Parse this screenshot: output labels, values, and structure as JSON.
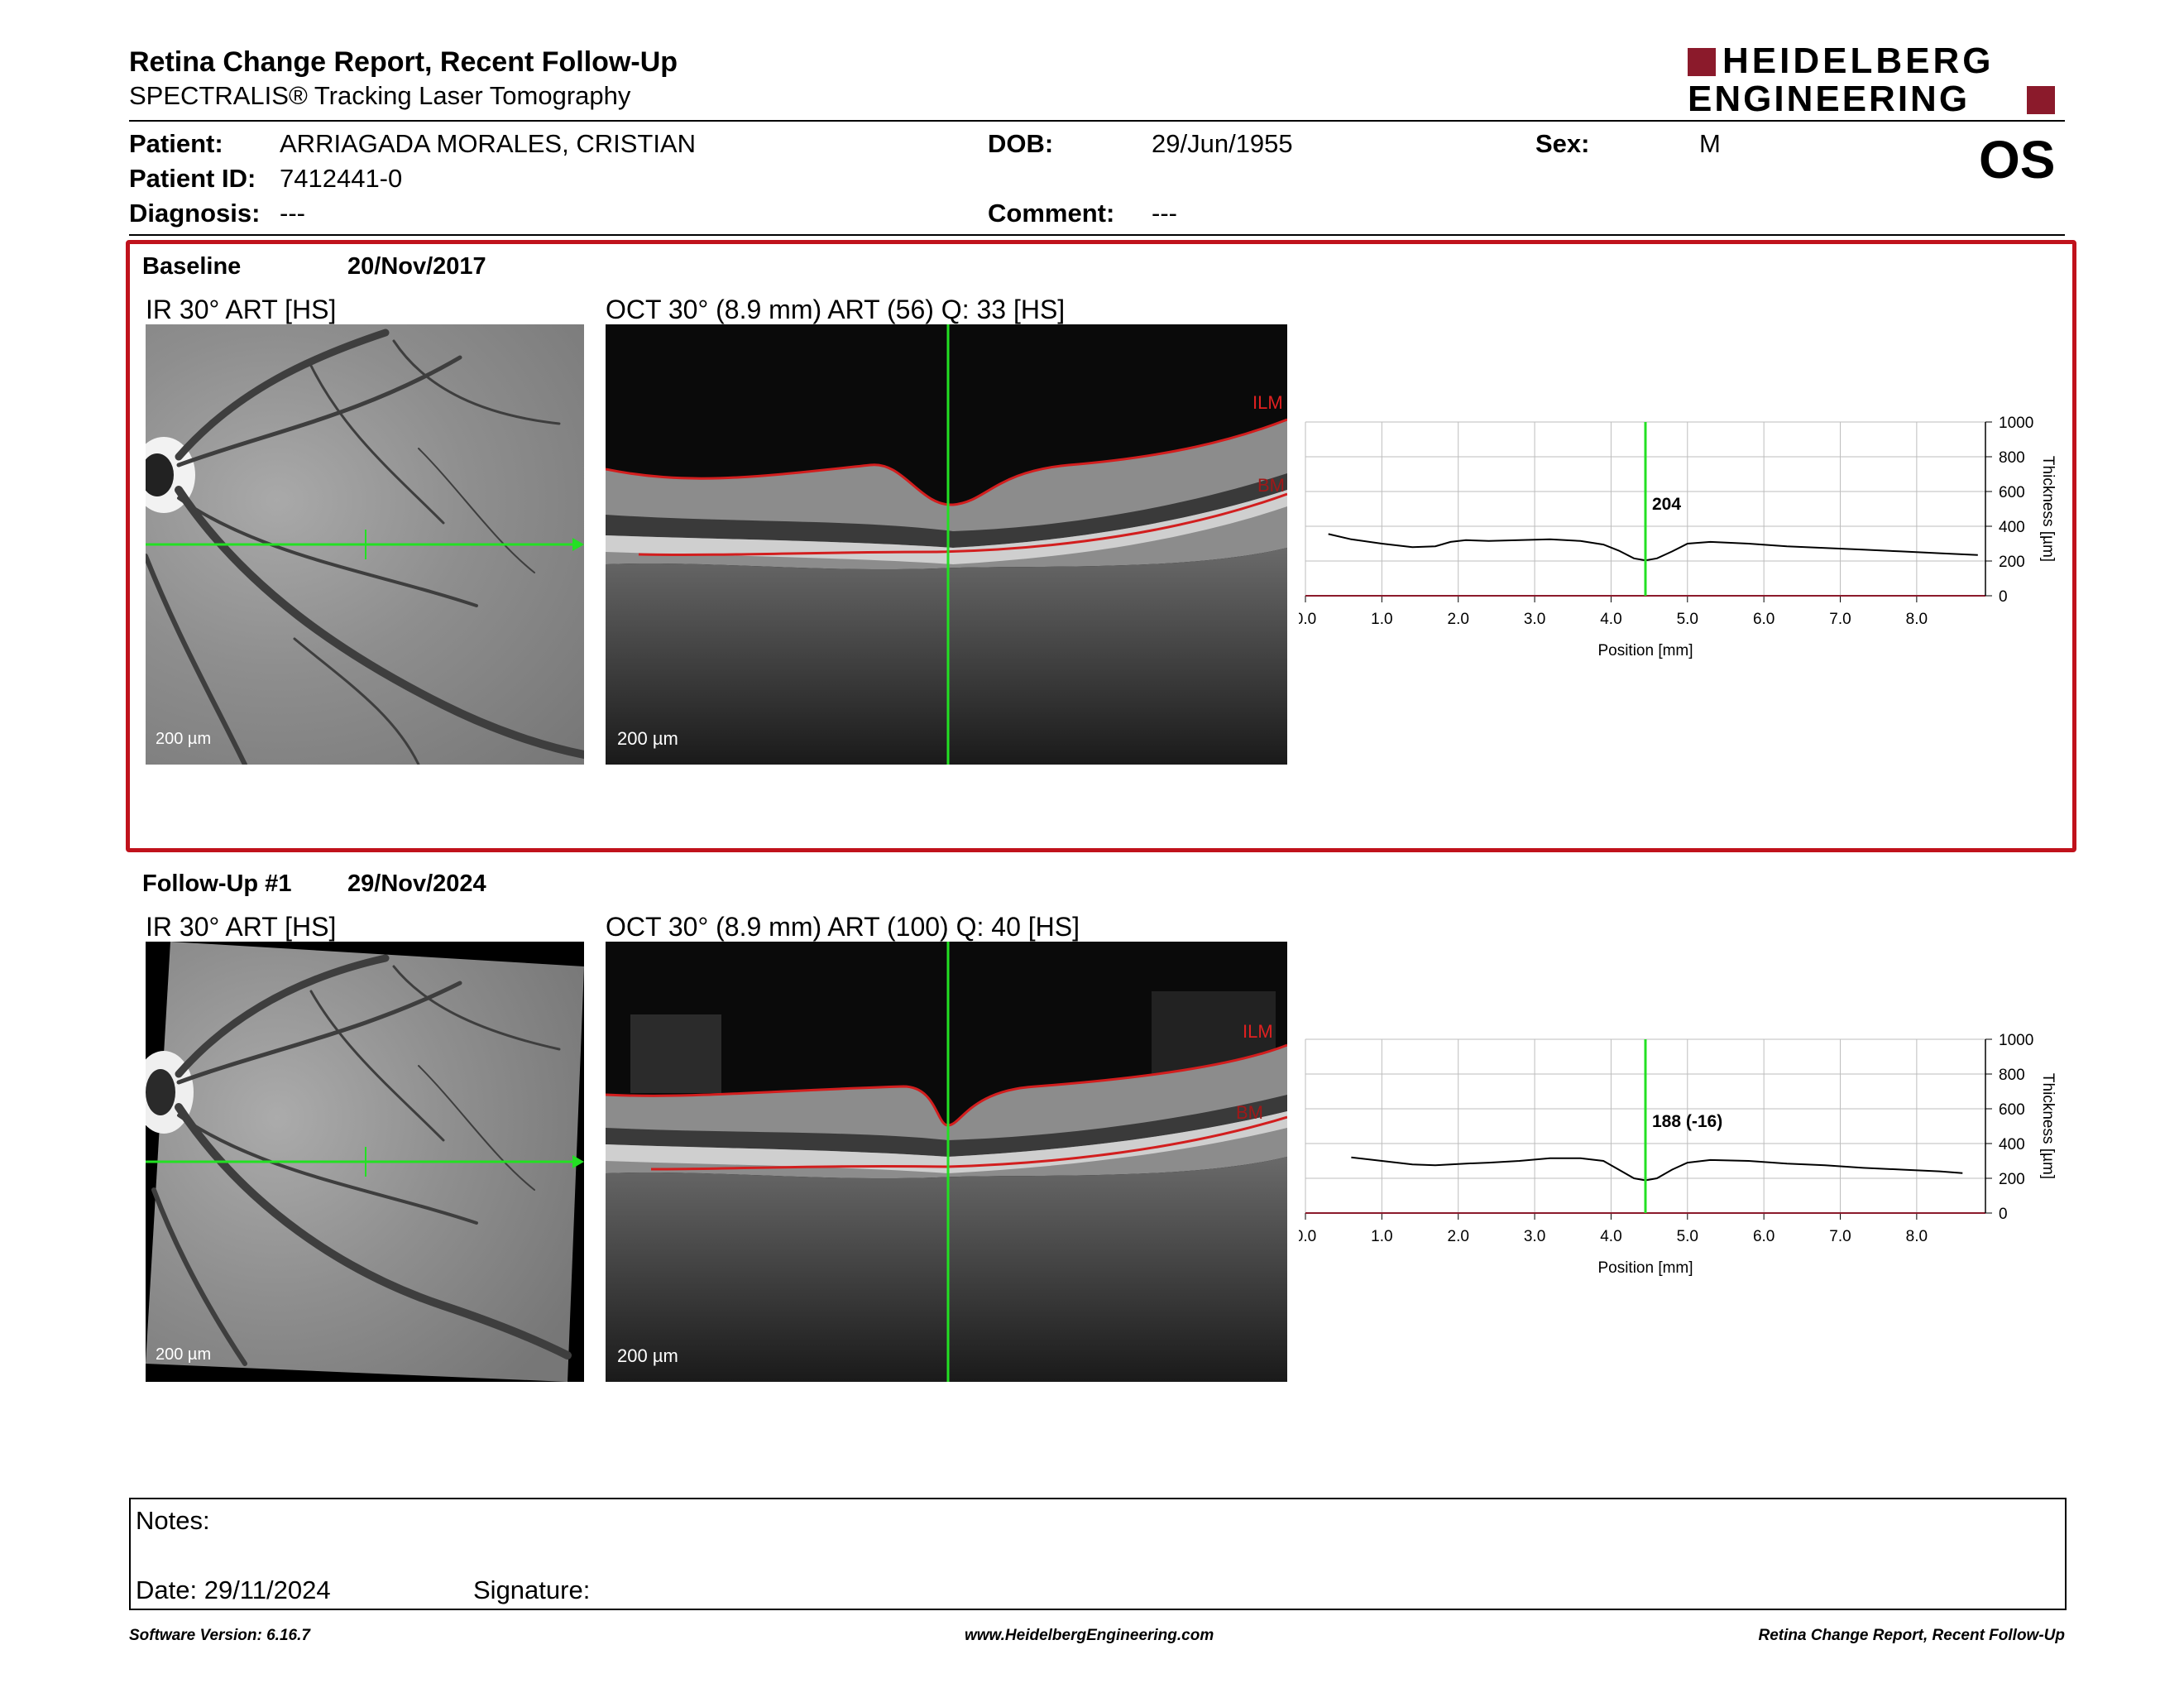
{
  "report": {
    "title": "Retina Change Report, Recent Follow-Up",
    "subtitle": "SPECTRALIS® Tracking Laser Tomography",
    "brand_line1": "HEIDELBERG",
    "brand_line2": "ENGINEERING",
    "eye": "OS",
    "brand_color": "#8b1a2b",
    "frame_color": "#c0121c"
  },
  "patient": {
    "patient_label": "Patient:",
    "patient_name": "ARRIAGADA MORALES, CRISTIAN",
    "id_label": "Patient ID:",
    "id": "7412441-0",
    "diagnosis_label": "Diagnosis:",
    "diagnosis": "---",
    "dob_label": "DOB:",
    "dob": "29/Jun/1955",
    "comment_label": "Comment:",
    "comment": "---",
    "sex_label": "Sex:",
    "sex": "M"
  },
  "baseline": {
    "label": "Baseline",
    "date": "20/Nov/2017",
    "ir_title": "IR 30° ART [HS]",
    "oct_title": "OCT 30° (8.9 mm) ART (56) Q: 33 [HS]",
    "ir_scale": "200 µm",
    "oct_scale": "200 µm",
    "ilm": "ILM",
    "bm": "BM"
  },
  "followup": {
    "label": "Follow-Up #1",
    "date": "29/Nov/2024",
    "ir_title": "IR 30° ART [HS]",
    "oct_title": "OCT 30° (8.9 mm) ART (100) Q: 40 [HS]",
    "ir_scale": "200 µm",
    "oct_scale": "200 µm",
    "ilm": "ILM",
    "bm": "BM"
  },
  "chart_data": [
    {
      "type": "line",
      "xlabel": "Position [mm]",
      "ylabel": "Thickness [µm]",
      "xlim": [
        0,
        8.9
      ],
      "ylim": [
        0,
        1000
      ],
      "xticks": [
        "0.0",
        "1.0",
        "2.0",
        "3.0",
        "4.0",
        "5.0",
        "6.0",
        "7.0",
        "8.0"
      ],
      "yticks": [
        "0",
        "200",
        "400",
        "600",
        "800",
        "1000"
      ],
      "grid": true,
      "cursor_x": 4.45,
      "cursor_label": "204",
      "series": [
        {
          "x": [
            0.3,
            0.6,
            1.0,
            1.4,
            1.7,
            1.9,
            2.1,
            2.4,
            2.8,
            3.2,
            3.6,
            3.9,
            4.1,
            4.3,
            4.45,
            4.6,
            4.8,
            5.0,
            5.3,
            5.8,
            6.3,
            6.8,
            7.3,
            7.8,
            8.3,
            8.8
          ],
          "y": [
            355,
            325,
            300,
            280,
            285,
            310,
            320,
            315,
            320,
            325,
            315,
            295,
            260,
            215,
            204,
            215,
            255,
            300,
            310,
            300,
            285,
            275,
            265,
            255,
            245,
            235
          ]
        }
      ]
    },
    {
      "type": "line",
      "xlabel": "Position [mm]",
      "ylabel": "Thickness [µm]",
      "xlim": [
        0,
        8.9
      ],
      "ylim": [
        0,
        1000
      ],
      "xticks": [
        "0.0",
        "1.0",
        "2.0",
        "3.0",
        "4.0",
        "5.0",
        "6.0",
        "7.0",
        "8.0"
      ],
      "yticks": [
        "0",
        "200",
        "400",
        "600",
        "800",
        "1000"
      ],
      "grid": true,
      "cursor_x": 4.45,
      "cursor_label": "188 (-16)",
      "series": [
        {
          "x": [
            0.6,
            1.0,
            1.4,
            1.7,
            1.9,
            2.1,
            2.4,
            2.8,
            3.2,
            3.6,
            3.9,
            4.1,
            4.3,
            4.45,
            4.6,
            4.8,
            5.0,
            5.3,
            5.8,
            6.3,
            6.8,
            7.3,
            7.8,
            8.3,
            8.6
          ],
          "y": [
            320,
            300,
            280,
            275,
            280,
            285,
            290,
            300,
            315,
            315,
            300,
            250,
            200,
            188,
            200,
            250,
            290,
            305,
            300,
            285,
            275,
            260,
            250,
            240,
            230
          ]
        }
      ]
    }
  ],
  "notes": {
    "notes_label": "Notes:",
    "date_label": "Date: 29/11/2024",
    "signature_label": "Signature:"
  },
  "footer": {
    "software": "Software Version: 6.16.7",
    "website": "www.HeidelbergEngineering.com",
    "report_name": "Retina Change Report, Recent Follow-Up"
  }
}
